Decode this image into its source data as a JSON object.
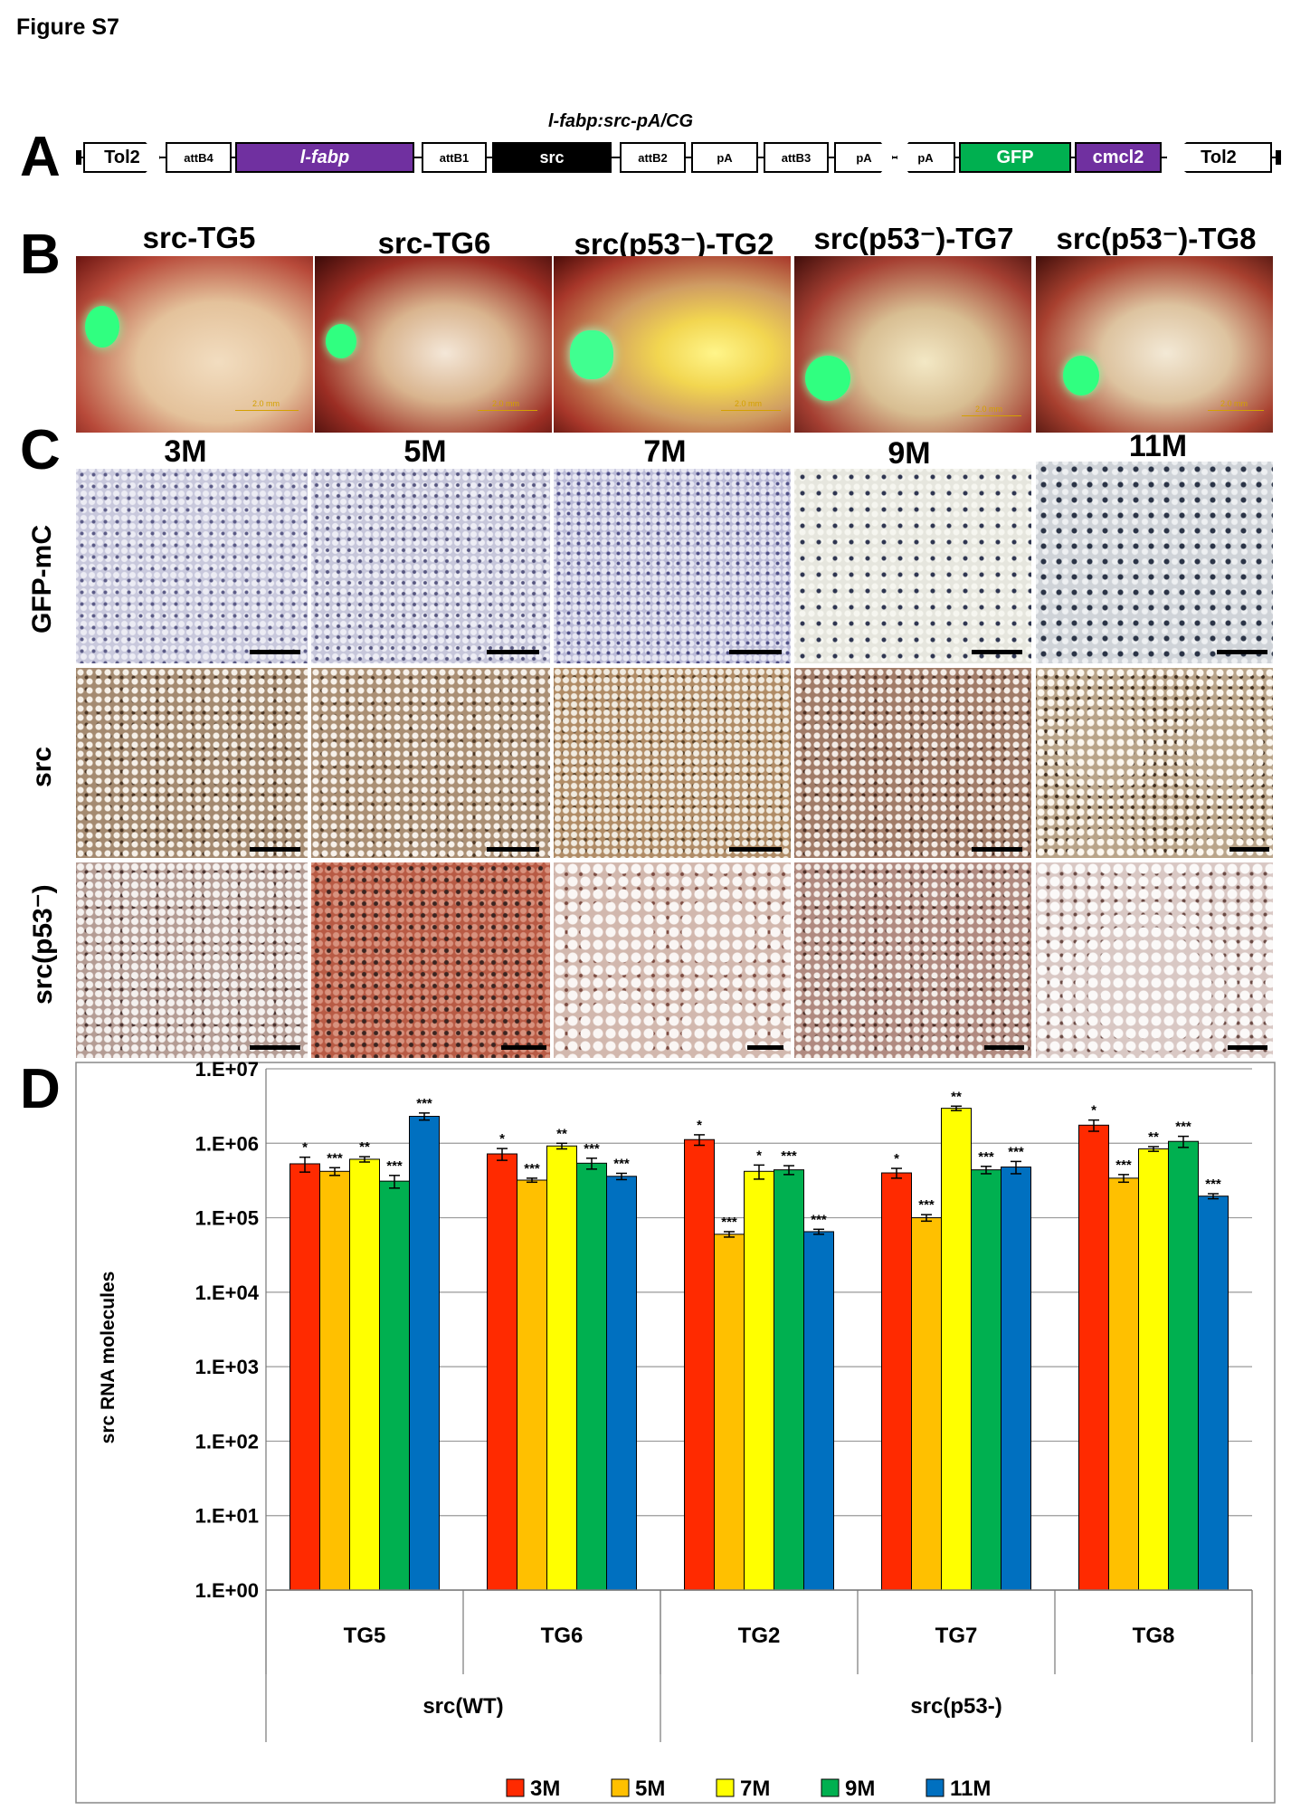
{
  "figure_title": "Figure S7",
  "panel_letters": {
    "a": "A",
    "b": "B",
    "c": "C",
    "d": "D"
  },
  "construct": {
    "title": "l-fabp:src-pA/CG",
    "elements": [
      "Tol2",
      "attB4",
      "l-fabp",
      "attB1",
      "src",
      "attB2",
      "pA",
      "attB3",
      "pA",
      "pA",
      "GFP",
      "cmcl2",
      "Tol2"
    ]
  },
  "panel_b": {
    "lines": [
      "src-TG5",
      "src-TG6",
      "src(p53⁻)-TG2",
      "src(p53⁻)-TG7",
      "src(p53⁻)-TG8"
    ],
    "scale_label": "2.0 mm"
  },
  "panel_c": {
    "ages": [
      "3M",
      "5M",
      "7M",
      "9M",
      "11M"
    ],
    "rows": [
      "GFP-mC",
      "src",
      "src(p53⁻)"
    ]
  },
  "chart_data": {
    "type": "bar",
    "ylabel": "src RNA molecules",
    "yscale": "log",
    "ylim": [
      1,
      10000000
    ],
    "yticks": [
      "1.E+00",
      "1.E+01",
      "1.E+02",
      "1.E+03",
      "1.E+04",
      "1.E+05",
      "1.E+06",
      "1.E+07"
    ],
    "grid": true,
    "categories": [
      "TG5",
      "TG6",
      "TG2",
      "TG7",
      "TG8"
    ],
    "groups": [
      {
        "label": "src(WT)",
        "categories": [
          "TG5",
          "TG6"
        ]
      },
      {
        "label": "src(p53-)",
        "categories": [
          "TG2",
          "TG7",
          "TG8"
        ]
      }
    ],
    "series": [
      {
        "name": "3M",
        "color": "#ff2a00",
        "values": [
          530000,
          720000,
          1120000,
          400000,
          1750000
        ],
        "errors": [
          120000,
          130000,
          180000,
          60000,
          300000
        ],
        "sig": [
          "*",
          "*",
          "*",
          "*",
          "*"
        ]
      },
      {
        "name": "5M",
        "color": "#ffc000",
        "values": [
          420000,
          320000,
          60000,
          100000,
          340000
        ],
        "errors": [
          50000,
          20000,
          5000,
          10000,
          40000
        ],
        "sig": [
          "***",
          "***",
          "***",
          "***",
          "***"
        ]
      },
      {
        "name": "7M",
        "color": "#ffff00",
        "values": [
          610000,
          920000,
          420000,
          2950000,
          840000
        ],
        "errors": [
          50000,
          80000,
          90000,
          200000,
          60000
        ],
        "sig": [
          "**",
          "**",
          "*",
          "**",
          "**"
        ]
      },
      {
        "name": "9M",
        "color": "#00b050",
        "values": [
          310000,
          540000,
          440000,
          440000,
          1060000
        ],
        "errors": [
          60000,
          90000,
          60000,
          50000,
          180000
        ],
        "sig": [
          "***",
          "***",
          "***",
          "***",
          "***"
        ]
      },
      {
        "name": "11M",
        "color": "#0070c0",
        "values": [
          2300000,
          360000,
          65000,
          480000,
          195000
        ],
        "errors": [
          250000,
          35000,
          5000,
          90000,
          15000
        ],
        "sig": [
          "***",
          "***",
          "***",
          "***",
          "***"
        ]
      }
    ],
    "legend_position": "bottom"
  }
}
